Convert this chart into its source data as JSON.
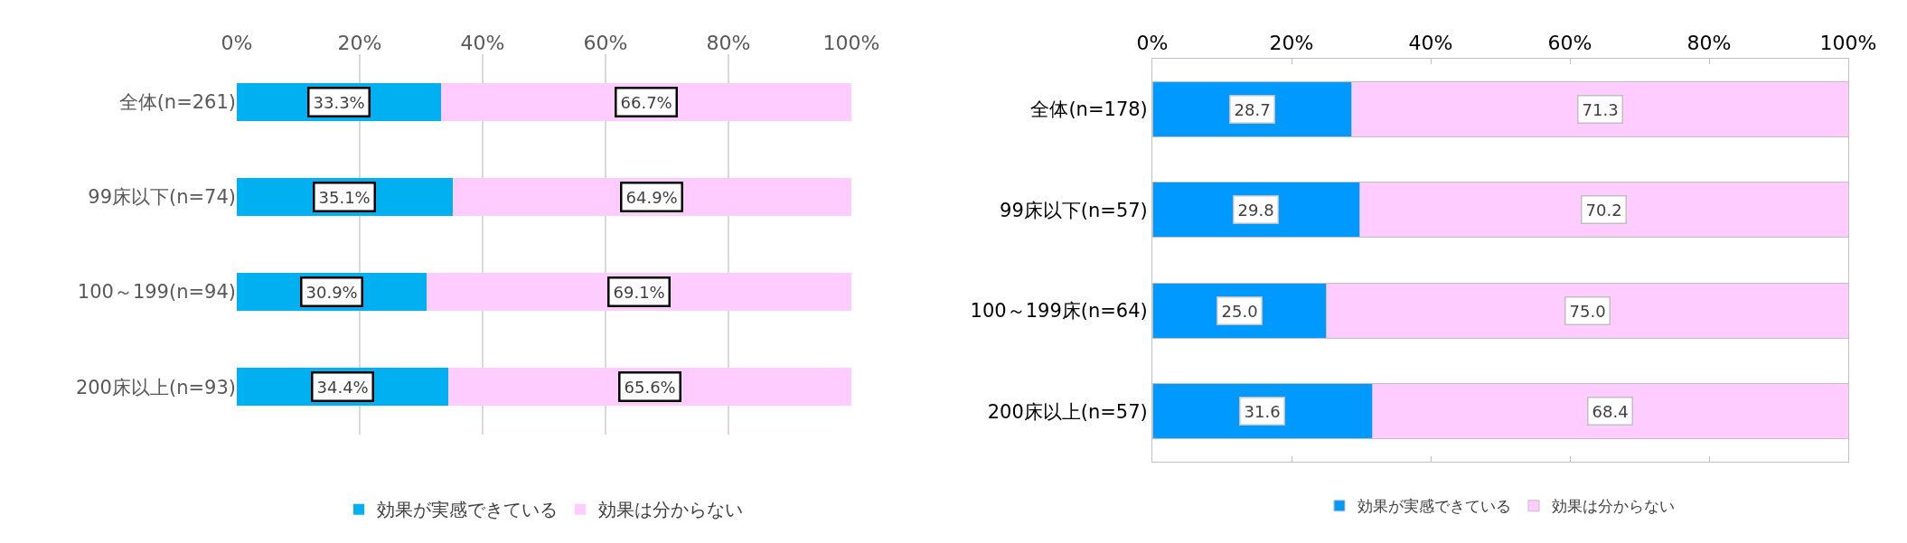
{
  "chart_data": [
    {
      "type": "bar",
      "orientation": "horizontal",
      "stacked": true,
      "categories": [
        "全体(n=261)",
        "99床以下(n=74)",
        "100～199(n=94)",
        "200床以上(n=93)"
      ],
      "series": [
        {
          "name": "効果が実感できている",
          "color": "#00b0f0",
          "values": [
            33.3,
            35.1,
            30.9,
            34.4
          ],
          "value_labels": [
            "33.3%",
            "35.1%",
            "30.9%",
            "34.4%"
          ]
        },
        {
          "name": "効果は分からない",
          "color": "#ffccff",
          "values": [
            66.7,
            64.9,
            69.1,
            65.6
          ],
          "value_labels": [
            "66.7%",
            "64.9%",
            "69.1%",
            "65.6%"
          ]
        }
      ],
      "xlim": [
        0,
        100
      ],
      "xticks": [
        {
          "value": 0,
          "label": "0%"
        },
        {
          "value": 20,
          "label": "20%"
        },
        {
          "value": 40,
          "label": "40%"
        },
        {
          "value": 60,
          "label": "60%"
        },
        {
          "value": 80,
          "label": "80%"
        },
        {
          "value": 100,
          "label": "100%"
        }
      ],
      "grid": "x",
      "legend": "bottom"
    },
    {
      "type": "bar",
      "orientation": "horizontal",
      "stacked": true,
      "categories": [
        "全体(n=178)",
        "99床以下(n=57)",
        "100～199床(n=64)",
        "200床以上(n=57)"
      ],
      "series": [
        {
          "name": "効果が実感できている",
          "color": "#0099ff",
          "values": [
            28.7,
            29.8,
            25.0,
            31.6
          ],
          "value_labels": [
            "28.7",
            "29.8",
            "25.0",
            "31.6"
          ]
        },
        {
          "name": "効果は分からない",
          "color": "#ffccff",
          "values": [
            71.3,
            70.2,
            75.0,
            68.4
          ],
          "value_labels": [
            "71.3",
            "70.2",
            "75.0",
            "68.4"
          ]
        }
      ],
      "xlim": [
        0,
        100
      ],
      "xticks": [
        {
          "value": 0,
          "label": "0%"
        },
        {
          "value": 20,
          "label": "20%"
        },
        {
          "value": 40,
          "label": "40%"
        },
        {
          "value": 60,
          "label": "60%"
        },
        {
          "value": 80,
          "label": "80%"
        },
        {
          "value": 100,
          "label": "100%"
        }
      ],
      "grid": false,
      "legend": "bottom"
    }
  ]
}
